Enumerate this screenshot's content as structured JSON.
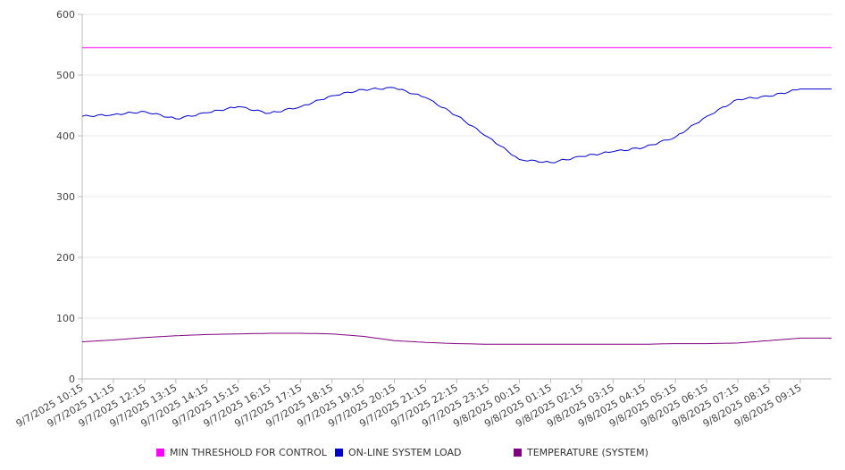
{
  "chart_data": {
    "type": "line",
    "title": "",
    "xlabel": "",
    "ylabel": "",
    "ylim": [
      0,
      600
    ],
    "yticks": [
      0,
      100,
      200,
      300,
      400,
      500,
      600
    ],
    "grid": true,
    "legend_position": "bottom",
    "x_tick_labels": [
      "9/7/2025 10:15",
      "9/7/2025 11:15",
      "9/7/2025 12:15",
      "9/7/2025 13:15",
      "9/7/2025 14:15",
      "9/7/2025 15:15",
      "9/7/2025 16:15",
      "9/7/2025 17:15",
      "9/7/2025 18:15",
      "9/7/2025 19:15",
      "9/7/2025 20:15",
      "9/7/2025 21:15",
      "9/7/2025 22:15",
      "9/7/2025 23:15",
      "9/8/2025 00:15",
      "9/8/2025 01:15",
      "9/8/2025 02:15",
      "9/8/2025 03:15",
      "9/8/2025 04:15",
      "9/8/2025 05:15",
      "9/8/2025 06:15",
      "9/8/2025 07:15",
      "9/8/2025 08:15",
      "9/8/2025 09:15"
    ],
    "series": [
      {
        "name": "MIN THRESHOLD FOR CONTROL",
        "color": "#ff00ff",
        "values": [
          545,
          545,
          545,
          545,
          545,
          545,
          545,
          545,
          545,
          545,
          545,
          545,
          545,
          545,
          545,
          545,
          545,
          545,
          545,
          545,
          545,
          545,
          545,
          545
        ]
      },
      {
        "name": "ON-LINE SYSTEM LOAD",
        "color": "#0000cc",
        "values": [
          432,
          435,
          440,
          428,
          438,
          448,
          437,
          448,
          466,
          476,
          479,
          463,
          433,
          398,
          361,
          356,
          366,
          374,
          381,
          398,
          432,
          460,
          465,
          477
        ]
      },
      {
        "name": "TEMPERATURE (SYSTEM)",
        "color": "#800080",
        "values": [
          61,
          64,
          68,
          71,
          73,
          74,
          75,
          75,
          74,
          70,
          63,
          60,
          58,
          57,
          57,
          57,
          57,
          57,
          57,
          58,
          58,
          59,
          63,
          67
        ]
      }
    ]
  },
  "legend": [
    {
      "label": "MIN THRESHOLD FOR CONTROL",
      "color": "#ff00ff"
    },
    {
      "label": "ON-LINE SYSTEM LOAD",
      "color": "#0000cc"
    },
    {
      "label": "TEMPERATURE (SYSTEM)",
      "color": "#800080"
    }
  ]
}
